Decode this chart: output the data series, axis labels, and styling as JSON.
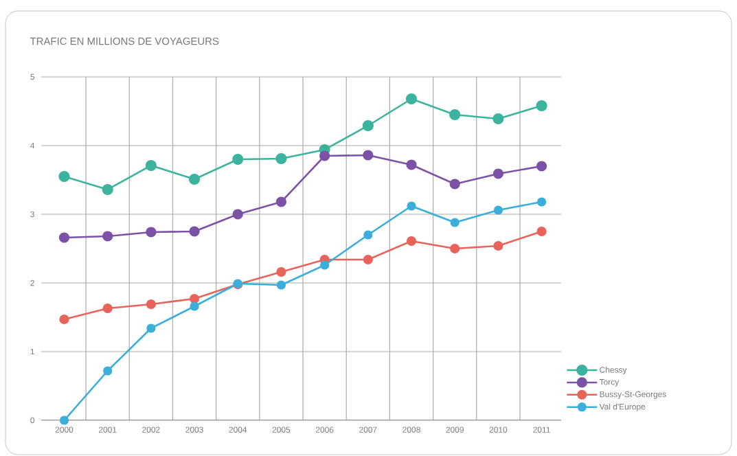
{
  "chart_data": {
    "type": "line",
    "title": "TRAFIC EN MILLIONS DE VOYAGEURS",
    "categories": [
      "2000",
      "2001",
      "2002",
      "2003",
      "2004",
      "2005",
      "2006",
      "2007",
      "2008",
      "2009",
      "2010",
      "2011"
    ],
    "series": [
      {
        "name": "Chessy",
        "color": "#3cb39d",
        "values": [
          3.55,
          3.36,
          3.71,
          3.51,
          3.8,
          3.81,
          3.94,
          4.29,
          4.68,
          4.45,
          4.39,
          4.58
        ]
      },
      {
        "name": "Torcy",
        "color": "#7b52a6",
        "values": [
          2.66,
          2.68,
          2.74,
          2.75,
          3.0,
          3.18,
          3.85,
          3.86,
          3.72,
          3.44,
          3.59,
          3.7
        ]
      },
      {
        "name": "Bussy-St-Georges",
        "color": "#e8645a",
        "values": [
          1.47,
          1.63,
          1.69,
          1.77,
          1.98,
          2.16,
          2.34,
          2.34,
          2.61,
          2.5,
          2.54,
          2.75
        ]
      },
      {
        "name": "Val d'Europe",
        "color": "#3aafd9",
        "values": [
          0,
          0.72,
          1.34,
          1.66,
          1.99,
          1.97,
          2.26,
          2.7,
          3.12,
          2.88,
          3.06,
          3.18
        ]
      }
    ],
    "ylim": [
      0,
      5
    ],
    "yticks": [
      0,
      1,
      2,
      3,
      4,
      5
    ],
    "grid": true,
    "legend": "bottom right",
    "marker": "circle",
    "line_style": "solid"
  }
}
